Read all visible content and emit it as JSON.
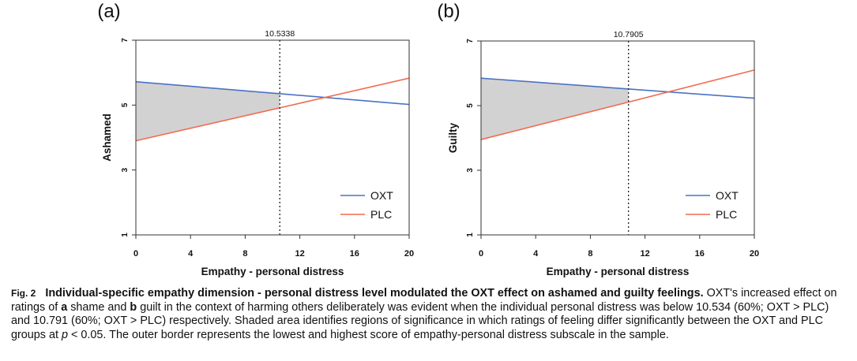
{
  "chart_data": [
    {
      "type": "line",
      "panel_label": "(a)",
      "xlabel": "Empathy - personal distress",
      "ylabel": "Ashamed",
      "xlim": [
        0,
        20
      ],
      "ylim": [
        1,
        7
      ],
      "xticks": [
        0,
        4,
        8,
        12,
        16,
        20
      ],
      "yticks": [
        1,
        3,
        5,
        7
      ],
      "threshold": 10.5338,
      "threshold_label": "10.5338",
      "series": [
        {
          "name": "OXT",
          "color": "#4a72c4",
          "x": [
            0,
            20
          ],
          "y": [
            5.72,
            5.02
          ]
        },
        {
          "name": "PLC",
          "color": "#f26a4f",
          "x": [
            0,
            20
          ],
          "y": [
            3.9,
            5.83
          ]
        }
      ],
      "shaded_region": {
        "x": [
          0,
          10.5338
        ],
        "color": "#d2d2d2"
      },
      "legend": [
        "OXT",
        "PLC"
      ]
    },
    {
      "type": "line",
      "panel_label": "(b)",
      "xlabel": "Empathy - personal distress",
      "ylabel": "Guilty",
      "xlim": [
        0,
        20
      ],
      "ylim": [
        1,
        7
      ],
      "xticks": [
        0,
        4,
        8,
        12,
        16,
        20
      ],
      "yticks": [
        1,
        3,
        5,
        7
      ],
      "threshold": 10.7905,
      "threshold_label": "10.7905",
      "series": [
        {
          "name": "OXT",
          "color": "#4a72c4",
          "x": [
            0,
            20
          ],
          "y": [
            5.85,
            5.23
          ]
        },
        {
          "name": "PLC",
          "color": "#f26a4f",
          "x": [
            0,
            20
          ],
          "y": [
            3.95,
            6.1
          ]
        }
      ],
      "shaded_region": {
        "x": [
          0,
          10.7905
        ],
        "color": "#d2d2d2"
      },
      "legend": [
        "OXT",
        "PLC"
      ]
    }
  ],
  "caption": {
    "label_fig": "Fig. 2",
    "label_title": "Individual-specific empathy dimension - personal distress level modulated the OXT effect on ashamed and guilty feelings.",
    "t1": " OXT's increased effect on ratings of ",
    "a": "a",
    "t2": " shame and ",
    "b": "b",
    "t3": " guilt in the context of harming others deliberately was evident when the individual personal distress was below 10.534 (60%; OXT > PLC) and 10.791 (60%; OXT > PLC) respectively. Shaded area identifies regions of significance in which ratings of feeling differ significantly between the OXT and PLC groups at ",
    "p": "p",
    "t4": " < 0.05. The outer border represents the lowest and highest score of empathy-personal distress subscale in the sample."
  }
}
